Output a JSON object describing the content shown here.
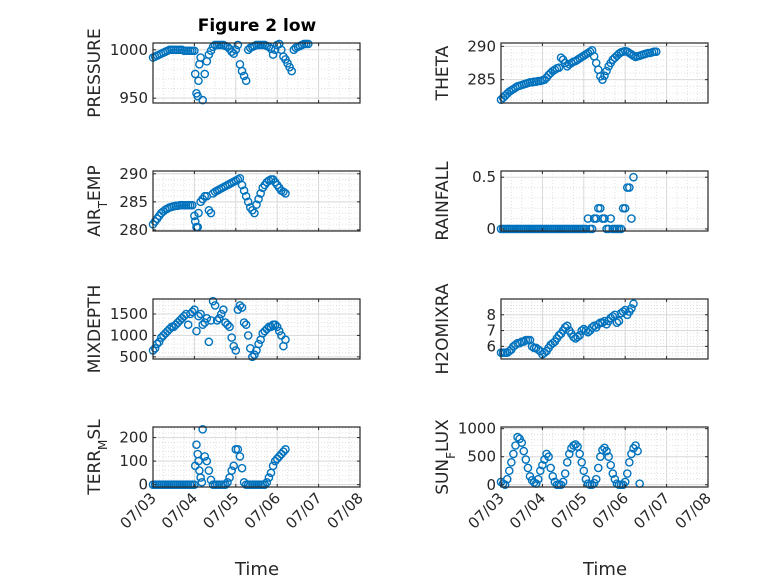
{
  "figure_title": "Figure 2 low",
  "marker_color": "#0072BD",
  "grid_color": "#d9d9d9",
  "axis_color": "#262626",
  "x_ticks": [
    "07/03",
    "07/04",
    "07/05",
    "07/06",
    "07/07",
    "07/08"
  ],
  "x_label": "Time",
  "chart_data": [
    {
      "type": "scatter",
      "ylabel": "PRESSURE",
      "yticks": [
        950,
        1000
      ],
      "ylim": [
        945,
        1007
      ],
      "xlim": [
        0,
        5
      ],
      "grid": true,
      "title": "Figure 2 low",
      "x": [
        0,
        0.05,
        0.1,
        0.15,
        0.2,
        0.25,
        0.3,
        0.35,
        0.4,
        0.45,
        0.5,
        0.55,
        0.6,
        0.65,
        0.7,
        0.75,
        0.8,
        0.85,
        0.9,
        0.95,
        1.0,
        1.02,
        1.05,
        1.08,
        1.1,
        1.12,
        1.15,
        1.2,
        1.25,
        1.3,
        1.35,
        1.4,
        1.45,
        1.5,
        1.55,
        1.6,
        1.65,
        1.7,
        1.75,
        1.8,
        1.85,
        1.9,
        1.95,
        2.0,
        2.05,
        2.1,
        2.15,
        2.2,
        2.25,
        2.3,
        2.35,
        2.4,
        2.45,
        2.5,
        2.55,
        2.6,
        2.65,
        2.7,
        2.75,
        2.8,
        2.85,
        2.9,
        2.95,
        3.0,
        3.05,
        3.1,
        3.15,
        3.2,
        3.25,
        3.3,
        3.35,
        3.4,
        3.45,
        3.5,
        3.55,
        3.6,
        3.65,
        3.7,
        3.75
      ],
      "y": [
        992,
        993,
        994,
        995,
        996,
        997,
        998,
        999,
        1000,
        1000,
        1000,
        1000,
        1000,
        1000,
        1000,
        999,
        999,
        999,
        999,
        999,
        999,
        975,
        955,
        952,
        968,
        985,
        992,
        948,
        975,
        988,
        995,
        999,
        1003,
        1005,
        1005,
        1005,
        1005,
        1005,
        1004,
        1003,
        1001,
        998,
        996,
        1000,
        1005,
        985,
        978,
        973,
        968,
        1000,
        1002,
        1003,
        1004,
        1005,
        1005,
        1005,
        1005,
        1005,
        1004,
        1003,
        1001,
        995,
        1000,
        1005,
        1006,
        1000,
        993,
        990,
        986,
        982,
        978,
        1000,
        1002,
        1003,
        1004,
        1005,
        1006,
        1006,
        1006
      ]
    },
    {
      "type": "scatter",
      "ylabel": "THETA",
      "yticks": [
        285,
        290
      ],
      "ylim": [
        281.5,
        290.5
      ],
      "xlim": [
        0,
        5
      ],
      "grid": true,
      "x": [
        0,
        0.05,
        0.1,
        0.15,
        0.2,
        0.25,
        0.3,
        0.35,
        0.4,
        0.45,
        0.5,
        0.55,
        0.6,
        0.65,
        0.7,
        0.75,
        0.8,
        0.85,
        0.9,
        0.95,
        1.0,
        1.05,
        1.1,
        1.15,
        1.2,
        1.25,
        1.3,
        1.35,
        1.4,
        1.45,
        1.5,
        1.55,
        1.6,
        1.65,
        1.7,
        1.75,
        1.8,
        1.85,
        1.9,
        1.95,
        2.0,
        2.05,
        2.1,
        2.15,
        2.2,
        2.25,
        2.3,
        2.35,
        2.4,
        2.45,
        2.5,
        2.55,
        2.6,
        2.65,
        2.7,
        2.75,
        2.8,
        2.85,
        2.9,
        2.95,
        3.0,
        3.05,
        3.1,
        3.15,
        3.2,
        3.25,
        3.3,
        3.35,
        3.4,
        3.45,
        3.5,
        3.55,
        3.6,
        3.65,
        3.7,
        3.75
      ],
      "y": [
        282,
        282.3,
        282.6,
        282.9,
        283.2,
        283.4,
        283.6,
        283.8,
        284,
        284.1,
        284.2,
        284.3,
        284.4,
        284.5,
        284.6,
        284.6,
        284.7,
        284.7,
        284.8,
        284.8,
        284.9,
        285,
        285.3,
        285.7,
        286,
        286.3,
        286.5,
        286.7,
        286.8,
        288.3,
        288,
        287.5,
        287,
        287.3,
        287.5,
        287.7,
        287.8,
        288,
        288.2,
        288.4,
        288.6,
        288.8,
        289,
        289.2,
        289.4,
        288.5,
        287.5,
        286.5,
        285.5,
        285,
        285.6,
        286.3,
        287,
        287.5,
        288,
        288.3,
        288.6,
        288.9,
        289.1,
        289.2,
        289.3,
        289.2,
        289,
        288.8,
        288.6,
        288.4,
        288.5,
        288.6,
        288.7,
        288.8,
        288.9,
        289,
        289,
        289.1,
        289.2,
        289.2
      ]
    },
    {
      "type": "scatter",
      "ylabel": "AIR_TEMP",
      "yticks": [
        280,
        285,
        290
      ],
      "ylim": [
        279.8,
        290.5
      ],
      "xlim": [
        0,
        5
      ],
      "grid": true,
      "x": [
        0,
        0.05,
        0.1,
        0.15,
        0.2,
        0.25,
        0.3,
        0.35,
        0.4,
        0.45,
        0.5,
        0.55,
        0.6,
        0.65,
        0.7,
        0.75,
        0.8,
        0.85,
        0.9,
        0.95,
        1.0,
        1.02,
        1.05,
        1.08,
        1.1,
        1.15,
        1.2,
        1.25,
        1.3,
        1.35,
        1.4,
        1.45,
        1.5,
        1.55,
        1.6,
        1.65,
        1.7,
        1.75,
        1.8,
        1.85,
        1.9,
        1.95,
        2.0,
        2.05,
        2.1,
        2.15,
        2.2,
        2.25,
        2.3,
        2.35,
        2.4,
        2.45,
        2.5,
        2.55,
        2.6,
        2.65,
        2.7,
        2.75,
        2.8,
        2.85,
        2.9,
        2.95,
        3.0,
        3.05,
        3.1,
        3.15,
        3.2
      ],
      "y": [
        281,
        281.5,
        282,
        282.5,
        283,
        283.3,
        283.6,
        283.8,
        284,
        284.1,
        284.2,
        284.3,
        284.3,
        284.4,
        284.4,
        284.4,
        284.4,
        284.4,
        284.4,
        284.4,
        282.5,
        281.5,
        280.5,
        280.5,
        283,
        285,
        285.5,
        286,
        286,
        283.5,
        283,
        286.5,
        286.8,
        287,
        287.2,
        287.4,
        287.6,
        287.8,
        288,
        288.2,
        288.4,
        288.6,
        288.8,
        289,
        289.2,
        288,
        287,
        286,
        285,
        284,
        283.5,
        283,
        284.5,
        285.5,
        286.5,
        287.5,
        288,
        288.5,
        288.8,
        289,
        289,
        288.5,
        288,
        287.5,
        287,
        286.8,
        286.5
      ]
    },
    {
      "type": "scatter",
      "ylabel": "RAINFALL",
      "yticks": [
        0,
        0.5
      ],
      "ylim": [
        -0.02,
        0.56
      ],
      "xlim": [
        0,
        5
      ],
      "grid": true,
      "x": [
        0,
        0.05,
        0.1,
        0.15,
        0.2,
        0.25,
        0.3,
        0.35,
        0.4,
        0.45,
        0.5,
        0.55,
        0.6,
        0.65,
        0.7,
        0.75,
        0.8,
        0.85,
        0.9,
        0.95,
        1.0,
        1.05,
        1.1,
        1.15,
        1.2,
        1.25,
        1.3,
        1.35,
        1.4,
        1.45,
        1.5,
        1.55,
        1.6,
        1.65,
        1.7,
        1.75,
        1.8,
        1.85,
        1.9,
        1.95,
        2.0,
        2.05,
        2.1,
        2.15,
        2.2,
        2.25,
        2.3,
        2.35,
        2.4,
        2.45,
        2.5,
        2.55,
        2.6,
        2.65,
        2.7,
        2.75,
        2.8,
        2.85,
        2.9,
        2.95,
        3.0,
        3.05,
        3.1,
        3.15,
        3.2
      ],
      "y": [
        0,
        0,
        0,
        0,
        0,
        0,
        0,
        0,
        0,
        0,
        0,
        0,
        0,
        0,
        0,
        0,
        0,
        0,
        0,
        0,
        0,
        0,
        0,
        0,
        0,
        0,
        0,
        0,
        0,
        0,
        0,
        0,
        0,
        0,
        0,
        0,
        0,
        0,
        0,
        0,
        0,
        0,
        0.1,
        0,
        0,
        0.1,
        0.1,
        0.2,
        0.2,
        0.1,
        0.1,
        0,
        0,
        0.1,
        0,
        0,
        0,
        0,
        0,
        0.2,
        0.2,
        0.4,
        0.4,
        0.1,
        0.5
      ]
    },
    {
      "type": "scatter",
      "ylabel": "MIXDEPTH",
      "yticks": [
        500,
        1000,
        1500
      ],
      "ylim": [
        450,
        1850
      ],
      "xlim": [
        0,
        5
      ],
      "grid": true,
      "x": [
        0,
        0.05,
        0.1,
        0.15,
        0.2,
        0.25,
        0.3,
        0.35,
        0.4,
        0.45,
        0.5,
        0.55,
        0.6,
        0.65,
        0.7,
        0.75,
        0.8,
        0.85,
        0.9,
        0.95,
        1.0,
        1.05,
        1.1,
        1.15,
        1.2,
        1.25,
        1.3,
        1.35,
        1.4,
        1.45,
        1.5,
        1.55,
        1.6,
        1.65,
        1.7,
        1.75,
        1.8,
        1.85,
        1.9,
        1.95,
        2.0,
        2.05,
        2.1,
        2.15,
        2.2,
        2.25,
        2.3,
        2.35,
        2.4,
        2.45,
        2.5,
        2.55,
        2.6,
        2.65,
        2.7,
        2.75,
        2.8,
        2.85,
        2.9,
        2.95,
        3.0,
        3.05,
        3.1,
        3.15,
        3.2
      ],
      "y": [
        650,
        700,
        800,
        850,
        950,
        1000,
        1050,
        1100,
        1150,
        1200,
        1200,
        1250,
        1300,
        1350,
        1400,
        1450,
        1500,
        1250,
        1500,
        1550,
        1600,
        1100,
        1450,
        1500,
        1250,
        1300,
        1400,
        850,
        1350,
        1800,
        1700,
        1350,
        1400,
        1500,
        1600,
        1300,
        1250,
        1200,
        950,
        750,
        650,
        1600,
        1700,
        1650,
        1300,
        1250,
        1000,
        700,
        500,
        550,
        650,
        800,
        900,
        1050,
        1100,
        1150,
        1200,
        1200,
        1250,
        1250,
        1200,
        1100,
        1000,
        750,
        900
      ]
    },
    {
      "type": "scatter",
      "ylabel": "H2OMIXRA",
      "yticks": [
        6,
        7,
        8
      ],
      "ylim": [
        5.2,
        9.0
      ],
      "xlim": [
        0,
        5
      ],
      "grid": true,
      "x": [
        0,
        0.05,
        0.1,
        0.15,
        0.2,
        0.25,
        0.3,
        0.35,
        0.4,
        0.45,
        0.5,
        0.55,
        0.6,
        0.65,
        0.7,
        0.75,
        0.8,
        0.85,
        0.9,
        0.95,
        1.0,
        1.05,
        1.1,
        1.15,
        1.2,
        1.25,
        1.3,
        1.35,
        1.4,
        1.45,
        1.5,
        1.55,
        1.6,
        1.65,
        1.7,
        1.75,
        1.8,
        1.85,
        1.9,
        1.95,
        2.0,
        2.05,
        2.1,
        2.15,
        2.2,
        2.25,
        2.3,
        2.35,
        2.4,
        2.45,
        2.5,
        2.55,
        2.6,
        2.65,
        2.7,
        2.75,
        2.8,
        2.85,
        2.9,
        2.95,
        3.0,
        3.05,
        3.1,
        3.15,
        3.2
      ],
      "y": [
        5.6,
        5.6,
        5.6,
        5.6,
        5.7,
        5.8,
        6,
        6.1,
        6.2,
        6.2,
        6.3,
        6.3,
        6.4,
        6.4,
        6.4,
        6,
        5.9,
        5.9,
        5.8,
        5.7,
        5.5,
        5.6,
        5.7,
        5.9,
        6.1,
        6.2,
        6.3,
        6.5,
        6.7,
        6.8,
        7.0,
        7.2,
        7.3,
        7,
        6.8,
        6.6,
        6.5,
        6.6,
        6.7,
        7.0,
        7.1,
        7.0,
        6.9,
        7.0,
        7.2,
        7.3,
        7.2,
        7.4,
        7.5,
        7.5,
        7.6,
        7.4,
        7.6,
        7.8,
        7.9,
        8.0,
        7.5,
        7.6,
        8.1,
        8.2,
        8.3,
        8.0,
        8.2,
        8.4,
        8.7
      ]
    },
    {
      "type": "scatter",
      "ylabel": "TERR_MSL",
      "yticks": [
        0,
        100,
        200
      ],
      "ylim": [
        -10,
        245
      ],
      "xlim": [
        0,
        5
      ],
      "grid": true,
      "x": [
        0,
        0.05,
        0.1,
        0.15,
        0.2,
        0.25,
        0.3,
        0.35,
        0.4,
        0.45,
        0.5,
        0.55,
        0.6,
        0.65,
        0.7,
        0.75,
        0.8,
        0.85,
        0.9,
        0.95,
        1.0,
        1.02,
        1.05,
        1.08,
        1.1,
        1.12,
        1.15,
        1.18,
        1.2,
        1.25,
        1.3,
        1.35,
        1.4,
        1.45,
        1.5,
        1.55,
        1.6,
        1.65,
        1.7,
        1.75,
        1.8,
        1.85,
        1.9,
        1.95,
        2.0,
        2.05,
        2.1,
        2.15,
        2.2,
        2.25,
        2.3,
        2.35,
        2.4,
        2.45,
        2.5,
        2.55,
        2.6,
        2.65,
        2.7,
        2.75,
        2.8,
        2.85,
        2.9,
        2.95,
        3.0,
        3.05,
        3.1,
        3.15,
        3.2
      ],
      "y": [
        0,
        0,
        0,
        0,
        0,
        0,
        0,
        0,
        0,
        0,
        0,
        0,
        0,
        0,
        0,
        0,
        0,
        0,
        0,
        0,
        0,
        80,
        170,
        130,
        100,
        60,
        30,
        10,
        235,
        120,
        100,
        60,
        20,
        0,
        0,
        0,
        0,
        0,
        0,
        0,
        10,
        30,
        60,
        80,
        150,
        150,
        120,
        70,
        10,
        0,
        0,
        0,
        0,
        0,
        0,
        0,
        0,
        0,
        0,
        10,
        30,
        50,
        80,
        100,
        110,
        120,
        130,
        140,
        150
      ]
    },
    {
      "type": "scatter",
      "ylabel": "SUN_FLUX",
      "yticks": [
        0,
        500,
        1000
      ],
      "ylim": [
        -40,
        1030
      ],
      "xlim": [
        0,
        5
      ],
      "grid": true,
      "x": [
        0,
        0.05,
        0.1,
        0.15,
        0.2,
        0.25,
        0.3,
        0.35,
        0.4,
        0.45,
        0.5,
        0.55,
        0.6,
        0.65,
        0.7,
        0.75,
        0.8,
        0.85,
        0.9,
        0.95,
        1.0,
        1.05,
        1.1,
        1.15,
        1.2,
        1.25,
        1.3,
        1.35,
        1.4,
        1.45,
        1.5,
        1.55,
        1.6,
        1.65,
        1.7,
        1.75,
        1.8,
        1.85,
        1.9,
        1.95,
        2.0,
        2.05,
        2.1,
        2.15,
        2.2,
        2.25,
        2.3,
        2.35,
        2.4,
        2.45,
        2.5,
        2.55,
        2.6,
        2.65,
        2.7,
        2.75,
        2.8,
        2.85,
        2.9,
        2.95,
        3.0,
        3.05,
        3.1,
        3.15,
        3.2,
        3.25,
        3.3,
        3.35
      ],
      "y": [
        50,
        20,
        0,
        100,
        250,
        400,
        550,
        700,
        850,
        820,
        750,
        600,
        450,
        300,
        150,
        80,
        40,
        20,
        100,
        250,
        350,
        450,
        550,
        500,
        300,
        150,
        50,
        0,
        0,
        0,
        50,
        200,
        400,
        550,
        650,
        700,
        720,
        680,
        550,
        400,
        250,
        100,
        20,
        0,
        0,
        30,
        100,
        300,
        500,
        620,
        660,
        600,
        500,
        350,
        200,
        100,
        20,
        0,
        0,
        0,
        50,
        200,
        400,
        550,
        650,
        700,
        600,
        20
      ]
    }
  ]
}
